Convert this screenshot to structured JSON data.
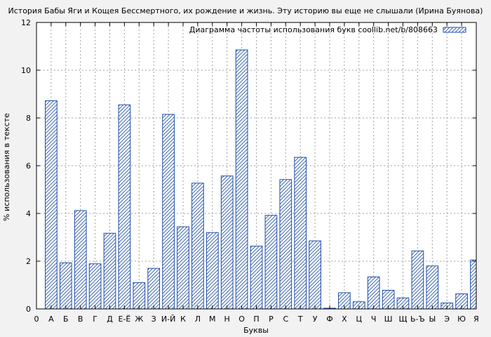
{
  "chart_data": {
    "type": "bar",
    "title": "История Бабы Яги и Кощея Бессмертного, их рождение и жизнь. Эту историю вы еще не слышали (Ирина Буянова)",
    "xlabel": "Буквы",
    "ylabel": "% использования в тексте",
    "ylim": [
      0,
      12
    ],
    "yticks": [
      0,
      2,
      4,
      6,
      8,
      10,
      12
    ],
    "grid": true,
    "legend": {
      "placement": "top-right",
      "label": "Диаграмма частоты использования букв coollib.net/b/808663"
    },
    "bar_color": "#1f4fa8",
    "categories": [
      "0",
      "А",
      "Б",
      "В",
      "Г",
      "Д",
      "Е-Ё",
      "Ж",
      "З",
      "И-Й",
      "К",
      "Л",
      "М",
      "Н",
      "О",
      "П",
      "Р",
      "С",
      "Т",
      "У",
      "Ф",
      "Х",
      "Ц",
      "Ч",
      "Ш",
      "Щ",
      "Ь-Ъ",
      "Ы",
      "Э",
      "Ю",
      "Я"
    ],
    "values": [
      0,
      8.72,
      1.93,
      4.12,
      1.89,
      3.17,
      8.55,
      1.1,
      1.7,
      8.15,
      3.44,
      5.27,
      3.2,
      5.57,
      10.85,
      2.63,
      3.92,
      5.42,
      6.35,
      2.85,
      0.03,
      0.68,
      0.3,
      1.34,
      0.78,
      0.46,
      2.43,
      1.8,
      0.25,
      0.63,
      2.05
    ]
  }
}
